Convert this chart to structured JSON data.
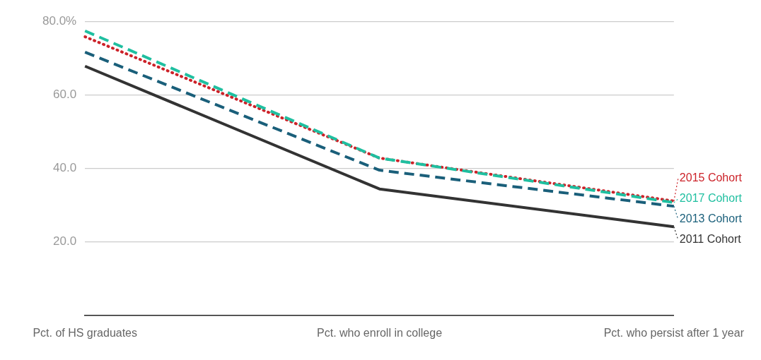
{
  "chart_data": {
    "type": "line",
    "categories": [
      "Pct. of HS graduates",
      "Pct. who enroll in college",
      "Pct. who persist after 1 year"
    ],
    "series": [
      {
        "name": "2011 Cohort",
        "color": "#333333",
        "line_style": "solid",
        "values": [
          67.8,
          34.4,
          24.1
        ]
      },
      {
        "name": "2013 Cohort",
        "color": "#1a5f7a",
        "line_style": "dashed",
        "values": [
          71.6,
          39.5,
          29.7
        ]
      },
      {
        "name": "2017 Cohort",
        "color": "#1fbfa0",
        "line_style": "dashed",
        "values": [
          77.4,
          42.8,
          30.7
        ]
      },
      {
        "name": "2015 Cohort",
        "color": "#cc2229",
        "line_style": "dotted",
        "values": [
          75.8,
          42.8,
          31.1
        ]
      }
    ],
    "ylim": [
      0,
      80
    ],
    "yticks": [
      {
        "value": 20,
        "label": "20.0"
      },
      {
        "value": 40,
        "label": "40.0"
      },
      {
        "value": 60,
        "label": "60.0"
      },
      {
        "value": 80,
        "label": "80.0%"
      }
    ],
    "grid": "y",
    "legend": "right",
    "marker": "none"
  }
}
